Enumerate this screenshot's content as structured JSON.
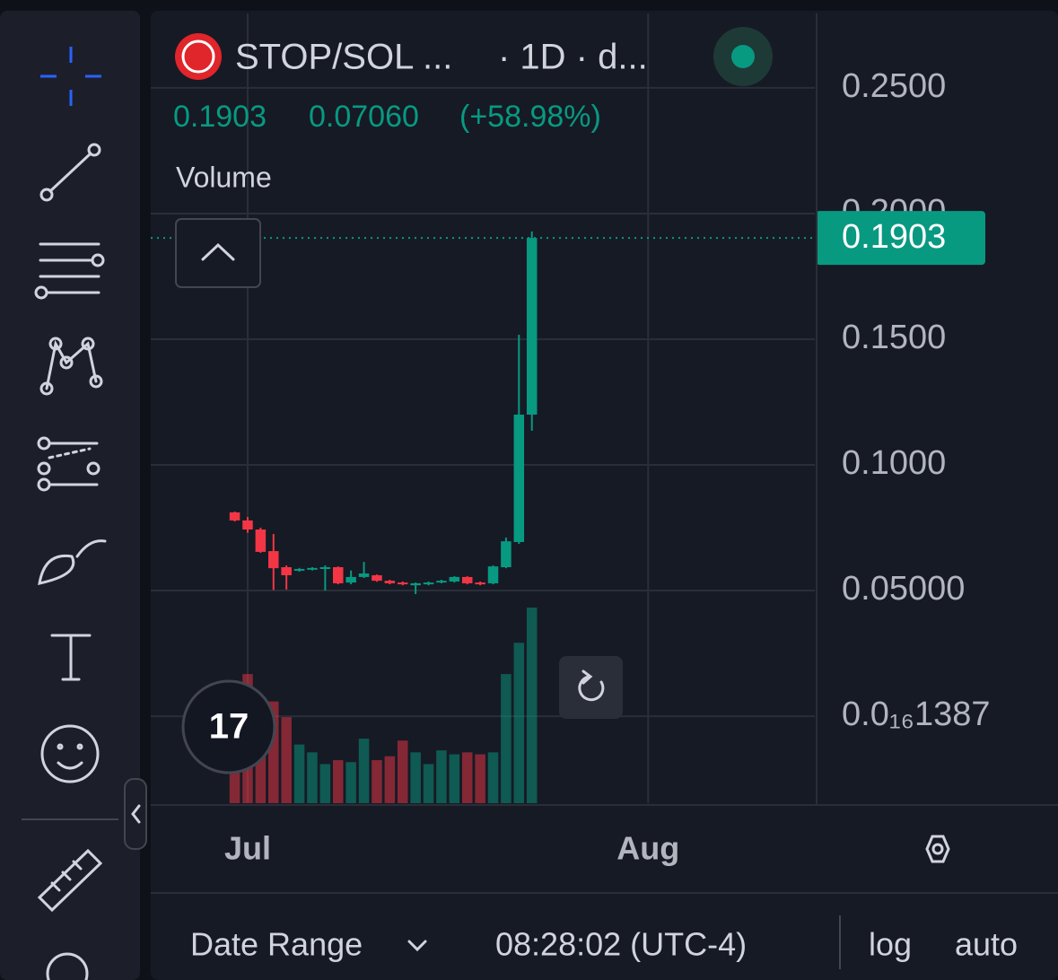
{
  "header": {
    "symbol": "STOP/SOL ...",
    "interval": "· 1D · d...",
    "change": "0.07060",
    "change_pct": "(+58.98%)",
    "indicator": "Volume"
  },
  "chart_data": {
    "type": "candlestick",
    "candles": [
      {
        "open": 0.0811,
        "high": 0.0814,
        "low": 0.0775,
        "close": 0.0779
      },
      {
        "open": 0.0779,
        "high": 0.0793,
        "low": 0.073,
        "close": 0.0743
      },
      {
        "open": 0.0743,
        "high": 0.075,
        "low": 0.065,
        "close": 0.0654
      },
      {
        "open": 0.0657,
        "high": 0.0725,
        "low": 0.0502,
        "close": 0.0589
      },
      {
        "open": 0.0593,
        "high": 0.06,
        "low": 0.0504,
        "close": 0.0561
      },
      {
        "open": 0.0582,
        "high": 0.059,
        "low": 0.0575,
        "close": 0.0586
      },
      {
        "open": 0.0586,
        "high": 0.0593,
        "low": 0.058,
        "close": 0.059
      },
      {
        "open": 0.0589,
        "high": 0.06,
        "low": 0.05,
        "close": 0.0593
      },
      {
        "open": 0.0593,
        "high": 0.0596,
        "low": 0.0525,
        "close": 0.0529
      },
      {
        "open": 0.0532,
        "high": 0.058,
        "low": 0.0525,
        "close": 0.0554
      },
      {
        "open": 0.0554,
        "high": 0.0614,
        "low": 0.055,
        "close": 0.0568
      },
      {
        "open": 0.0561,
        "high": 0.0564,
        "low": 0.0535,
        "close": 0.0539
      },
      {
        "open": 0.0539,
        "high": 0.0543,
        "low": 0.0525,
        "close": 0.0529
      },
      {
        "open": 0.0532,
        "high": 0.0536,
        "low": 0.0521,
        "close": 0.0525
      },
      {
        "open": 0.0521,
        "high": 0.0532,
        "low": 0.0486,
        "close": 0.0529
      },
      {
        "open": 0.0525,
        "high": 0.0536,
        "low": 0.0521,
        "close": 0.0532
      },
      {
        "open": 0.0532,
        "high": 0.0543,
        "low": 0.0529,
        "close": 0.0539
      },
      {
        "open": 0.0536,
        "high": 0.0557,
        "low": 0.0532,
        "close": 0.0554
      },
      {
        "open": 0.0554,
        "high": 0.0557,
        "low": 0.0525,
        "close": 0.0529
      },
      {
        "open": 0.0532,
        "high": 0.0536,
        "low": 0.0521,
        "close": 0.0525
      },
      {
        "open": 0.0529,
        "high": 0.06,
        "low": 0.0525,
        "close": 0.0596
      },
      {
        "open": 0.0593,
        "high": 0.0711,
        "low": 0.0589,
        "close": 0.0696
      },
      {
        "open": 0.0693,
        "high": 0.1518,
        "low": 0.0686,
        "close": 0.12
      },
      {
        "open": 0.12,
        "high": 0.1929,
        "low": 0.1136,
        "close": 0.1903
      }
    ],
    "volume": [
      60,
      66,
      44,
      52,
      44,
      30,
      26,
      20,
      22,
      21,
      33,
      22,
      24,
      32,
      26,
      20,
      27,
      25,
      26,
      25,
      26,
      66,
      82,
      100
    ],
    "volume_ylim": [
      0,
      100
    ],
    "ylim": [
      -0.0346,
      0.2796
    ],
    "yticks": [
      {
        "value": 0.25,
        "label": "0.2500"
      },
      {
        "value": 0.2,
        "label": "0.2000"
      },
      {
        "value": 0.15,
        "label": "0.1500"
      },
      {
        "value": 0.1,
        "label": "0.1000"
      },
      {
        "value": 0.05,
        "label": "0.05000"
      },
      {
        "value": 1.387e-17,
        "label": "0.0₁₆1387"
      }
    ],
    "xlim": [
      -6.5,
      44.9
    ],
    "xticks": [
      {
        "value": 1,
        "label": "Jul"
      },
      {
        "value": 32,
        "label": "Aug"
      }
    ],
    "up_color": "#089981",
    "down_color": "#f23645",
    "grid": true
  },
  "footer": {
    "date_range": "Date Range",
    "time": "08:28:02 (UTC-4)",
    "log": "log",
    "auto": "auto"
  }
}
